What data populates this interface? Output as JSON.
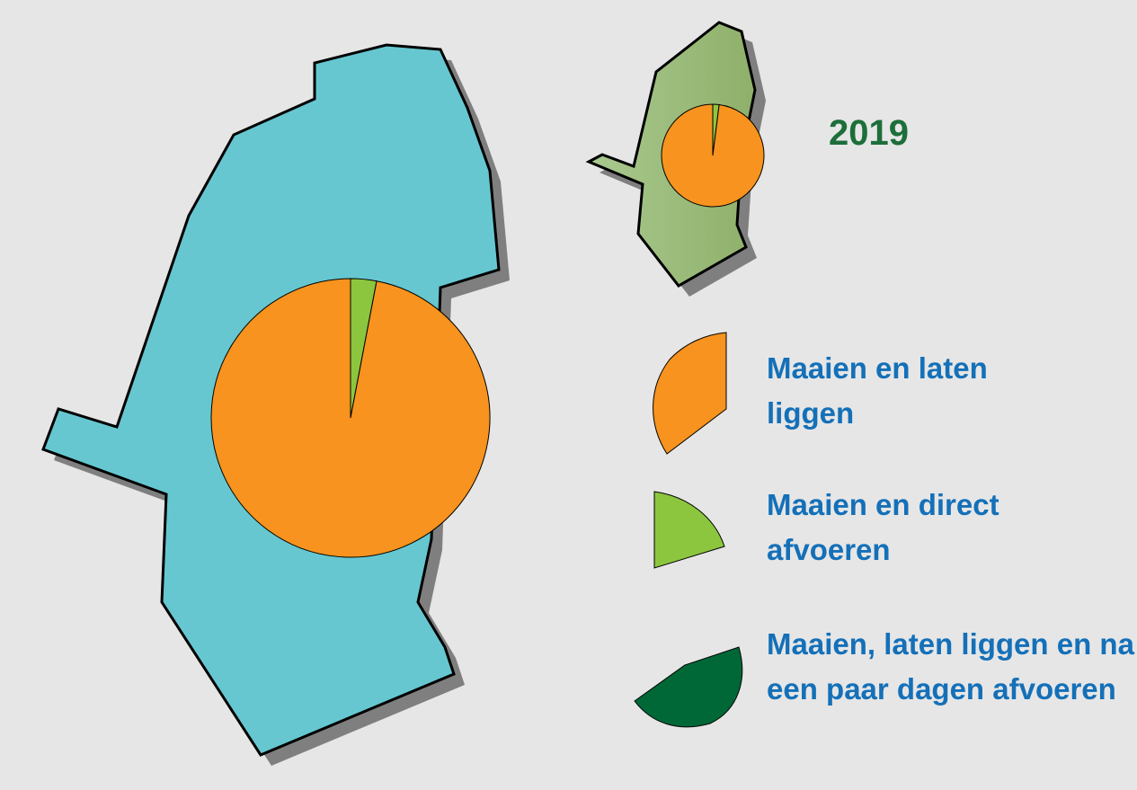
{
  "chart_data": {
    "type": "pie",
    "title": "2019",
    "categories": [
      "Maaien en laten liggen",
      "Maaien en direct afvoeren",
      "Maaien, laten liggen en na een paar dagen afvoeren"
    ],
    "colors": [
      "#f7931e",
      "#8cc63f",
      "#006837"
    ],
    "series": [
      {
        "values": [
          97,
          3,
          0
        ]
      },
      {
        "values": [
          98,
          2,
          0
        ]
      }
    ]
  }
}
